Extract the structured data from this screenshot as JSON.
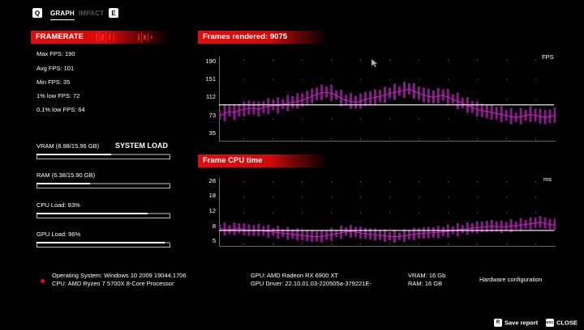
{
  "tabs": {
    "left_key": "Q",
    "right_key": "E",
    "items": [
      {
        "label": "GRAPH",
        "active": true
      },
      {
        "label": "IMPACT",
        "active": false
      }
    ]
  },
  "framerate": {
    "title": "FRAMERATE",
    "max": "Max FPS: 190",
    "avg": "Avg FPS: 101",
    "min": "Min FPS: 35",
    "low1": "1% low FPS: 72",
    "low01": "0.1% low FPS: 64"
  },
  "system_load": {
    "title": "SYSTEM LOAD",
    "items": [
      {
        "label": "VRAM (8.98/15.96 GB)",
        "fraction": 0.56
      },
      {
        "label": "RAM (6.38/15.90 GB)",
        "fraction": 0.4
      },
      {
        "label": "CPU Load: 83%",
        "fraction": 0.83
      },
      {
        "label": "GPU Load: 96%",
        "fraction": 0.96
      }
    ]
  },
  "charts": {
    "fps": {
      "title": "Frames rendered: 9075",
      "unit": "FPS",
      "ticks": [
        "190",
        "151",
        "112",
        "73",
        "35"
      ]
    },
    "cpu": {
      "title": "Frame CPU time",
      "unit": "ms",
      "ticks": [
        "28",
        "18",
        "12",
        "8",
        "5"
      ]
    }
  },
  "chart_data": [
    {
      "type": "line",
      "title": "Frames rendered: 9075",
      "ylabel": "FPS",
      "ylim": [
        35,
        190
      ],
      "yticks": [
        190,
        151,
        112,
        73,
        35
      ],
      "reference_line": 101,
      "color": "#8a1a8a",
      "values": [
        80,
        84,
        88,
        86,
        90,
        92,
        95,
        94,
        92,
        96,
        98,
        100,
        99,
        102,
        104,
        106,
        108,
        110,
        114,
        118,
        122,
        125,
        126,
        124,
        120,
        114,
        110,
        108,
        106,
        108,
        112,
        114,
        116,
        118,
        120,
        124,
        126,
        128,
        130,
        132,
        128,
        124,
        120,
        118,
        116,
        118,
        120,
        116,
        112,
        108,
        104,
        100,
        96,
        92,
        90,
        88,
        86,
        84,
        82,
        80,
        78,
        76,
        78,
        80,
        82,
        80,
        78,
        76,
        78,
        80
      ]
    },
    {
      "type": "line",
      "title": "Frame CPU time",
      "ylabel": "ms",
      "ylim": [
        5,
        28
      ],
      "yticks": [
        28,
        18,
        12,
        8,
        5
      ],
      "reference_line": 9.8,
      "color": "#8a1a8a",
      "values": [
        10.5,
        10.2,
        10.0,
        10.3,
        10.5,
        10.1,
        9.8,
        9.7,
        9.9,
        9.6,
        9.4,
        9.2,
        9.0,
        8.8,
        8.6,
        8.4,
        8.2,
        8.0,
        7.8,
        7.6,
        7.5,
        7.6,
        7.9,
        8.2,
        8.6,
        9.0,
        9.3,
        9.4,
        9.2,
        8.9,
        8.6,
        8.4,
        8.2,
        8.0,
        7.8,
        7.6,
        7.5,
        7.6,
        7.8,
        8.1,
        8.4,
        8.6,
        8.8,
        8.9,
        9.0,
        9.1,
        9.3,
        9.5,
        9.8,
        10.0,
        10.2,
        10.4,
        10.6,
        10.8,
        11.0,
        11.2,
        11.4,
        11.2,
        11.0,
        11.2,
        11.4,
        11.6,
        11.8,
        12.0,
        12.2,
        12.6,
        12.8,
        12.4,
        12.0,
        11.8
      ]
    }
  ],
  "footer": {
    "os": "Operating System: Windows 10 2009 19044.1706",
    "cpu": "CPU: AMD Ryzen 7 5700X 8-Core Processor",
    "gpu": "GPU: AMD Radeon RX 6900 XT",
    "driver": "GPU Driver: 22.10.01.03-220505a-379221E-",
    "vram": "VRAM: 16 Gb",
    "ram": "RAM: 16 GB",
    "hw": "Hardware configuration",
    "save_key": "R",
    "save": "Save report",
    "close_key": "ESC",
    "close": "CLOSE"
  }
}
